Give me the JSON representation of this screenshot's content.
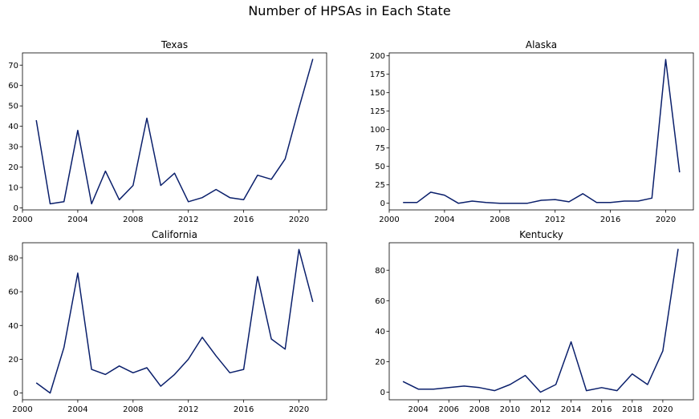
{
  "figure": {
    "title": "Number of HPSAs in Each State",
    "line_color": "#0a1f6b"
  },
  "chart_data": [
    {
      "type": "line",
      "title": "Texas",
      "xlabel": "",
      "ylabel": "",
      "xlim": [
        2000,
        2022
      ],
      "ylim": [
        -1,
        76
      ],
      "xticks": [
        2000,
        2004,
        2008,
        2012,
        2016,
        2020
      ],
      "yticks": [
        0,
        10,
        20,
        30,
        40,
        50,
        60,
        70
      ],
      "x": [
        2001,
        2002,
        2003,
        2004,
        2005,
        2006,
        2007,
        2008,
        2009,
        2010,
        2011,
        2012,
        2013,
        2014,
        2015,
        2016,
        2017,
        2018,
        2019,
        2020,
        2021
      ],
      "y": [
        43,
        2,
        3,
        38,
        2,
        18,
        4,
        11,
        44,
        11,
        17,
        3,
        5,
        9,
        5,
        4,
        16,
        14,
        24,
        49,
        73
      ],
      "grid": false
    },
    {
      "type": "line",
      "title": "Alaska",
      "xlabel": "",
      "ylabel": "",
      "xlim": [
        2000,
        2022
      ],
      "ylim": [
        -9,
        204
      ],
      "xticks": [
        2000,
        2004,
        2008,
        2012,
        2016,
        2020
      ],
      "yticks": [
        0,
        25,
        50,
        75,
        100,
        125,
        150,
        175,
        200
      ],
      "x": [
        2001,
        2002,
        2003,
        2004,
        2005,
        2006,
        2007,
        2008,
        2009,
        2010,
        2011,
        2012,
        2013,
        2014,
        2015,
        2016,
        2017,
        2018,
        2019,
        2020,
        2021
      ],
      "y": [
        1,
        1,
        15,
        11,
        0,
        3,
        1,
        0,
        0,
        0,
        4,
        5,
        2,
        13,
        1,
        1,
        3,
        3,
        7,
        195,
        42
      ],
      "grid": false
    },
    {
      "type": "line",
      "title": "California",
      "xlabel": "",
      "ylabel": "",
      "xlim": [
        2000,
        2022
      ],
      "ylim": [
        -4,
        89
      ],
      "xticks": [
        2000,
        2004,
        2008,
        2012,
        2016,
        2020
      ],
      "yticks": [
        0,
        20,
        40,
        60,
        80
      ],
      "x": [
        2001,
        2002,
        2003,
        2004,
        2005,
        2006,
        2007,
        2008,
        2009,
        2010,
        2011,
        2012,
        2013,
        2014,
        2015,
        2016,
        2017,
        2018,
        2019,
        2020,
        2021
      ],
      "y": [
        6,
        0,
        27,
        71,
        14,
        11,
        16,
        12,
        15,
        4,
        11,
        20,
        33,
        22,
        12,
        14,
        69,
        32,
        26,
        85,
        54
      ],
      "grid": false
    },
    {
      "type": "line",
      "title": "Kentucky",
      "xlabel": "",
      "ylabel": "",
      "xlim": [
        2002.1,
        2022
      ],
      "ylim": [
        -5,
        98
      ],
      "xticks": [
        2004,
        2006,
        2008,
        2010,
        2012,
        2014,
        2016,
        2018,
        2020
      ],
      "yticks": [
        0,
        20,
        40,
        60,
        80
      ],
      "x": [
        2003,
        2004,
        2005,
        2006,
        2007,
        2008,
        2009,
        2010,
        2011,
        2012,
        2013,
        2014,
        2015,
        2016,
        2017,
        2018,
        2019,
        2020,
        2021
      ],
      "y": [
        7,
        2,
        2,
        3,
        4,
        3,
        1,
        5,
        11,
        0,
        5,
        33,
        1,
        3,
        1,
        12,
        5,
        27,
        94
      ],
      "grid": false
    }
  ]
}
